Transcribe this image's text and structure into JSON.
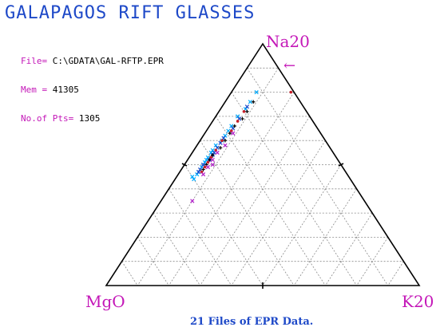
{
  "title": "GALAPAGOS RIFT GLASSES",
  "info": {
    "file_label": "File=",
    "file_value": "C:\\GDATA\\GAL-RFTP.EPR",
    "mem_label": "Mem =",
    "mem_value": "41305",
    "pts_label": "No.of Pts=",
    "pts_value": "1305"
  },
  "footer": "21 Files of EPR Data.",
  "arrow_glyph": "←",
  "colors": {
    "title": "#1e49c8",
    "label": "#c418b8",
    "triangle": "#000000",
    "grid": "#8a8a8a"
  },
  "chart_data": {
    "type": "scatter",
    "subtype": "ternary",
    "apex_labels": {
      "top": "Na20",
      "left": "MgO",
      "right": "K20"
    },
    "grid_divisions": 10,
    "series": [
      {
        "color": "#00aaff",
        "marker": "cross",
        "points": [
          [
            0.46,
            0.48,
            0.06
          ],
          [
            0.47,
            0.47,
            0.06
          ],
          [
            0.49,
            0.45,
            0.06
          ],
          [
            0.5,
            0.44,
            0.06
          ],
          [
            0.51,
            0.43,
            0.06
          ],
          [
            0.52,
            0.42,
            0.06
          ],
          [
            0.53,
            0.41,
            0.06
          ],
          [
            0.55,
            0.39,
            0.06
          ],
          [
            0.56,
            0.38,
            0.06
          ],
          [
            0.58,
            0.36,
            0.06
          ],
          [
            0.6,
            0.33,
            0.07
          ],
          [
            0.62,
            0.31,
            0.07
          ],
          [
            0.64,
            0.29,
            0.07
          ],
          [
            0.66,
            0.27,
            0.07
          ],
          [
            0.7,
            0.23,
            0.07
          ],
          [
            0.73,
            0.19,
            0.08
          ],
          [
            0.76,
            0.16,
            0.08
          ],
          [
            0.8,
            0.12,
            0.08
          ],
          [
            0.44,
            0.5,
            0.06
          ],
          [
            0.45,
            0.5,
            0.05
          ]
        ]
      },
      {
        "color": "#1e49c8",
        "marker": "cross",
        "points": [
          [
            0.47,
            0.47,
            0.06
          ],
          [
            0.48,
            0.46,
            0.06
          ],
          [
            0.5,
            0.44,
            0.06
          ],
          [
            0.52,
            0.41,
            0.07
          ],
          [
            0.54,
            0.39,
            0.07
          ],
          [
            0.57,
            0.36,
            0.07
          ],
          [
            0.61,
            0.32,
            0.07
          ],
          [
            0.65,
            0.27,
            0.08
          ],
          [
            0.69,
            0.23,
            0.08
          ],
          [
            0.74,
            0.18,
            0.08
          ],
          [
            0.55,
            0.38,
            0.07
          ],
          [
            0.59,
            0.34,
            0.07
          ]
        ]
      },
      {
        "color": "#000000",
        "marker": "plus",
        "points": [
          [
            0.48,
            0.45,
            0.07
          ],
          [
            0.5,
            0.43,
            0.07
          ],
          [
            0.52,
            0.41,
            0.07
          ],
          [
            0.54,
            0.39,
            0.07
          ],
          [
            0.57,
            0.35,
            0.08
          ],
          [
            0.6,
            0.32,
            0.08
          ],
          [
            0.63,
            0.29,
            0.08
          ],
          [
            0.66,
            0.26,
            0.08
          ],
          [
            0.69,
            0.22,
            0.09
          ],
          [
            0.72,
            0.19,
            0.09
          ],
          [
            0.76,
            0.15,
            0.09
          ],
          [
            0.53,
            0.4,
            0.07
          ]
        ]
      },
      {
        "color": "#c8202a",
        "marker": "dot",
        "points": [
          [
            0.47,
            0.46,
            0.07
          ],
          [
            0.49,
            0.44,
            0.07
          ],
          [
            0.51,
            0.42,
            0.07
          ],
          [
            0.53,
            0.4,
            0.07
          ],
          [
            0.56,
            0.37,
            0.07
          ],
          [
            0.6,
            0.33,
            0.07
          ],
          [
            0.64,
            0.28,
            0.08
          ],
          [
            0.68,
            0.24,
            0.08
          ],
          [
            0.72,
            0.2,
            0.08
          ],
          [
            0.8,
            0.01,
            0.19
          ]
        ]
      },
      {
        "color": "#b01cc8",
        "marker": "cross",
        "points": [
          [
            0.46,
            0.46,
            0.08
          ],
          [
            0.49,
            0.43,
            0.08
          ],
          [
            0.52,
            0.4,
            0.08
          ],
          [
            0.55,
            0.37,
            0.08
          ],
          [
            0.58,
            0.33,
            0.09
          ],
          [
            0.35,
            0.55,
            0.1
          ],
          [
            0.5,
            0.41,
            0.09
          ],
          [
            0.63,
            0.28,
            0.09
          ]
        ]
      }
    ]
  }
}
